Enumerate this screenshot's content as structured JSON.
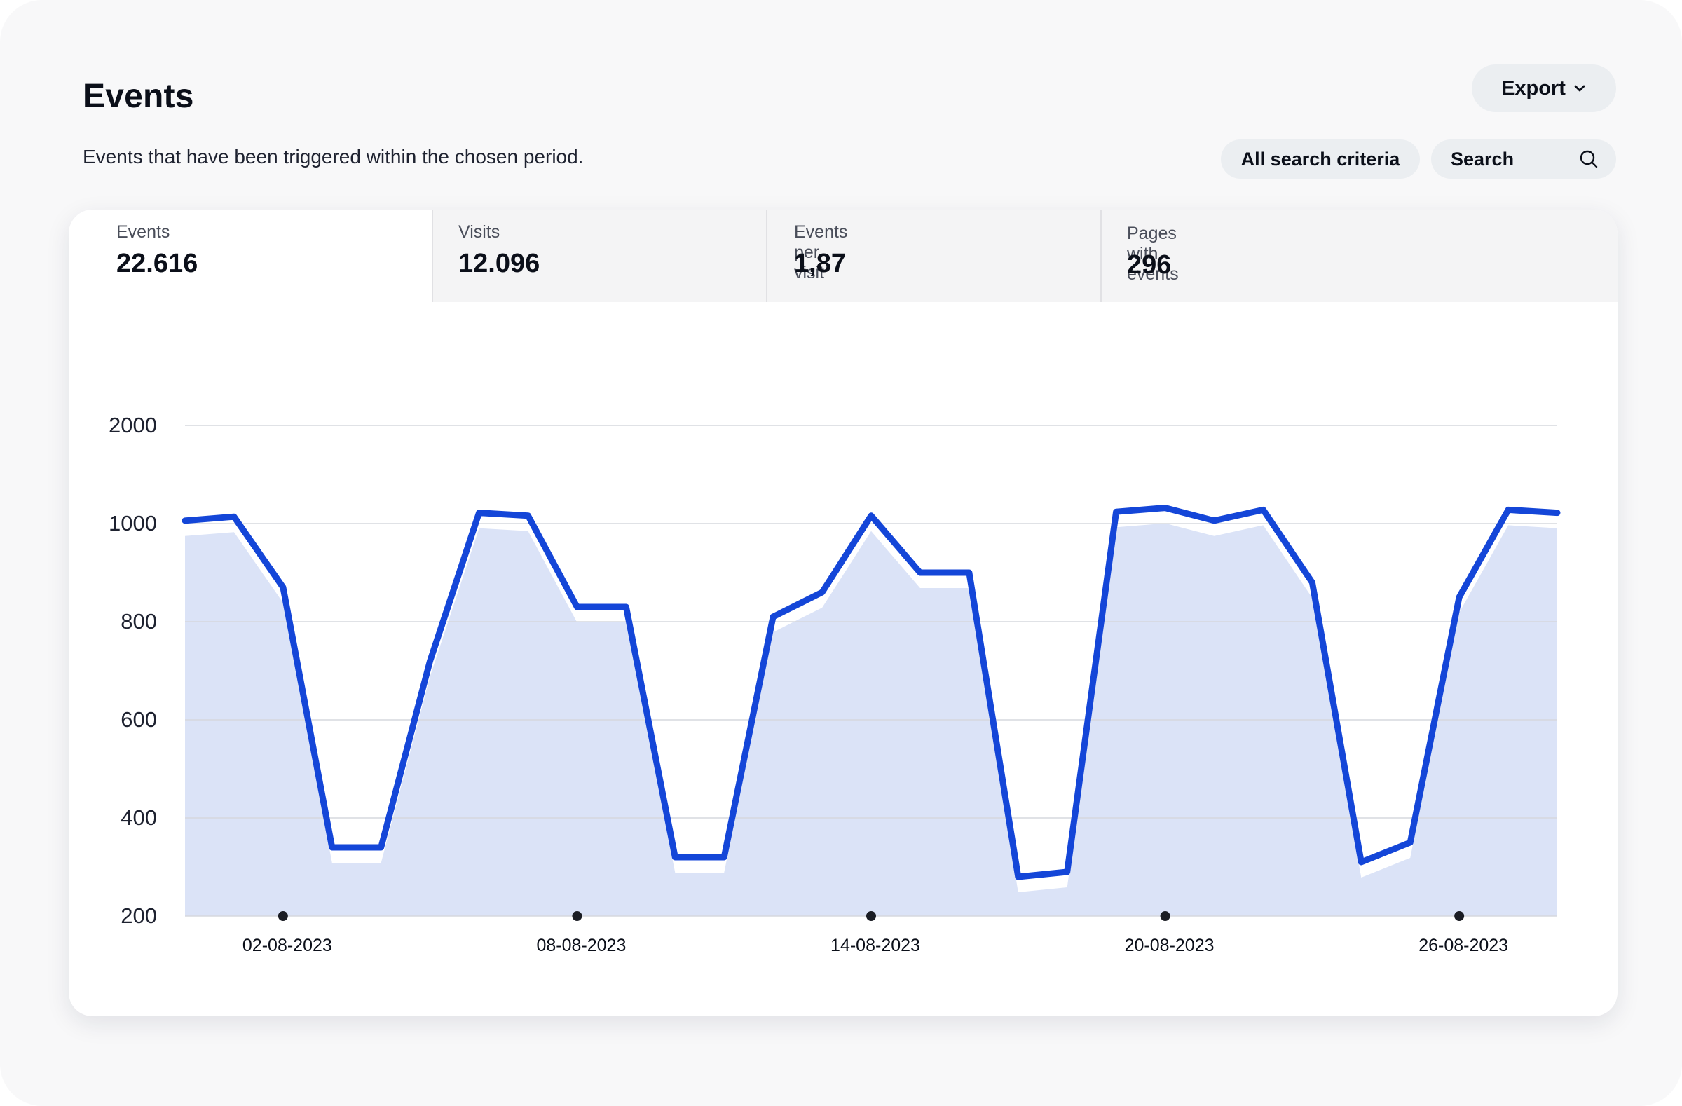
{
  "header": {
    "title": "Events",
    "subtitle": "Events that have been triggered within the chosen period.",
    "export_label": "Export",
    "criteria_label": "All search criteria",
    "search_placeholder": "Search"
  },
  "icons": {
    "export": "chevron-down-icon",
    "search": "search-icon"
  },
  "colors": {
    "line": "#1446d8",
    "area": "#dbe3f7",
    "grid": "#d6d8de",
    "active_tab": "#ffffff",
    "inactive_tab": "#f4f4f5"
  },
  "stats": [
    {
      "label": "Events",
      "value": "22.616"
    },
    {
      "label": "Visits",
      "value": "12.096"
    },
    {
      "label": "Events per visit",
      "value": "1,87"
    },
    {
      "label": "Pages with events",
      "value": "296"
    }
  ],
  "chart_data": {
    "type": "area",
    "title": "",
    "xlabel": "",
    "ylabel": "",
    "y_ticks": [
      "2000",
      "1000",
      "800",
      "600",
      "400",
      "200"
    ],
    "x_tick_labels": [
      "02-08-2023",
      "08-08-2023",
      "14-08-2023",
      "20-08-2023",
      "26-08-2023"
    ],
    "x_tick_days": [
      2,
      8,
      14,
      20,
      26
    ],
    "grid": true,
    "series": [
      {
        "x": [
          0,
          1,
          2,
          3,
          4,
          5,
          6,
          7,
          8,
          9,
          10,
          11,
          12,
          13,
          14,
          15,
          16,
          17,
          18,
          19,
          20,
          21,
          22,
          23,
          24,
          25,
          26,
          27,
          28
        ],
        "values": [
          1030,
          1070,
          870,
          340,
          340,
          720,
          1110,
          1080,
          830,
          830,
          320,
          320,
          810,
          860,
          1080,
          900,
          900,
          280,
          290,
          1120,
          1160,
          1030,
          1140,
          880,
          310,
          350,
          850,
          1140,
          1110
        ]
      }
    ]
  }
}
